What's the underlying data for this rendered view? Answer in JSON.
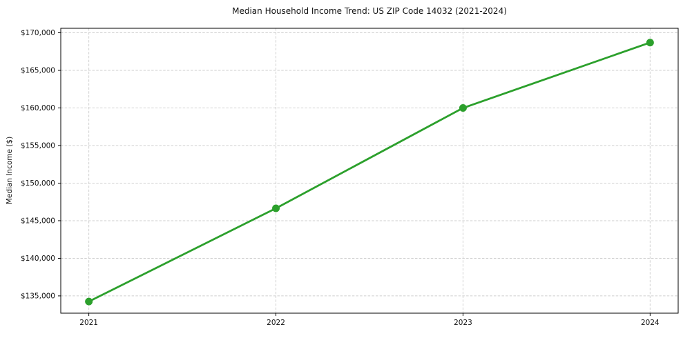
{
  "chart_data": {
    "type": "line",
    "title": "Median Household Income Trend: US ZIP Code 14032 (2021-2024)",
    "xlabel": "",
    "ylabel": "Median Income ($)",
    "x": [
      2021,
      2022,
      2023,
      2024
    ],
    "x_tick_labels": [
      "2021",
      "2022",
      "2023",
      "2024"
    ],
    "series": [
      {
        "name": "Median Household Income",
        "values": [
          134250,
          146650,
          160000,
          168700
        ]
      }
    ],
    "y_ticks": [
      135000,
      140000,
      145000,
      150000,
      155000,
      160000,
      165000,
      170000
    ],
    "y_tick_labels": [
      "$135,000",
      "$140,000",
      "$145,000",
      "$150,000",
      "$155,000",
      "$160,000",
      "$165,000",
      "$170,000"
    ],
    "xlim": [
      2020.85,
      2024.15
    ],
    "ylim": [
      132700,
      170600
    ],
    "grid": true,
    "grid_style": "dashed",
    "legend": "none",
    "line_color": "#2ca02c",
    "marker": "circle",
    "marker_color": "#2ca02c",
    "grid_color": "#cfcfcf",
    "background_color": "#ffffff",
    "spine_color": "#000000"
  }
}
